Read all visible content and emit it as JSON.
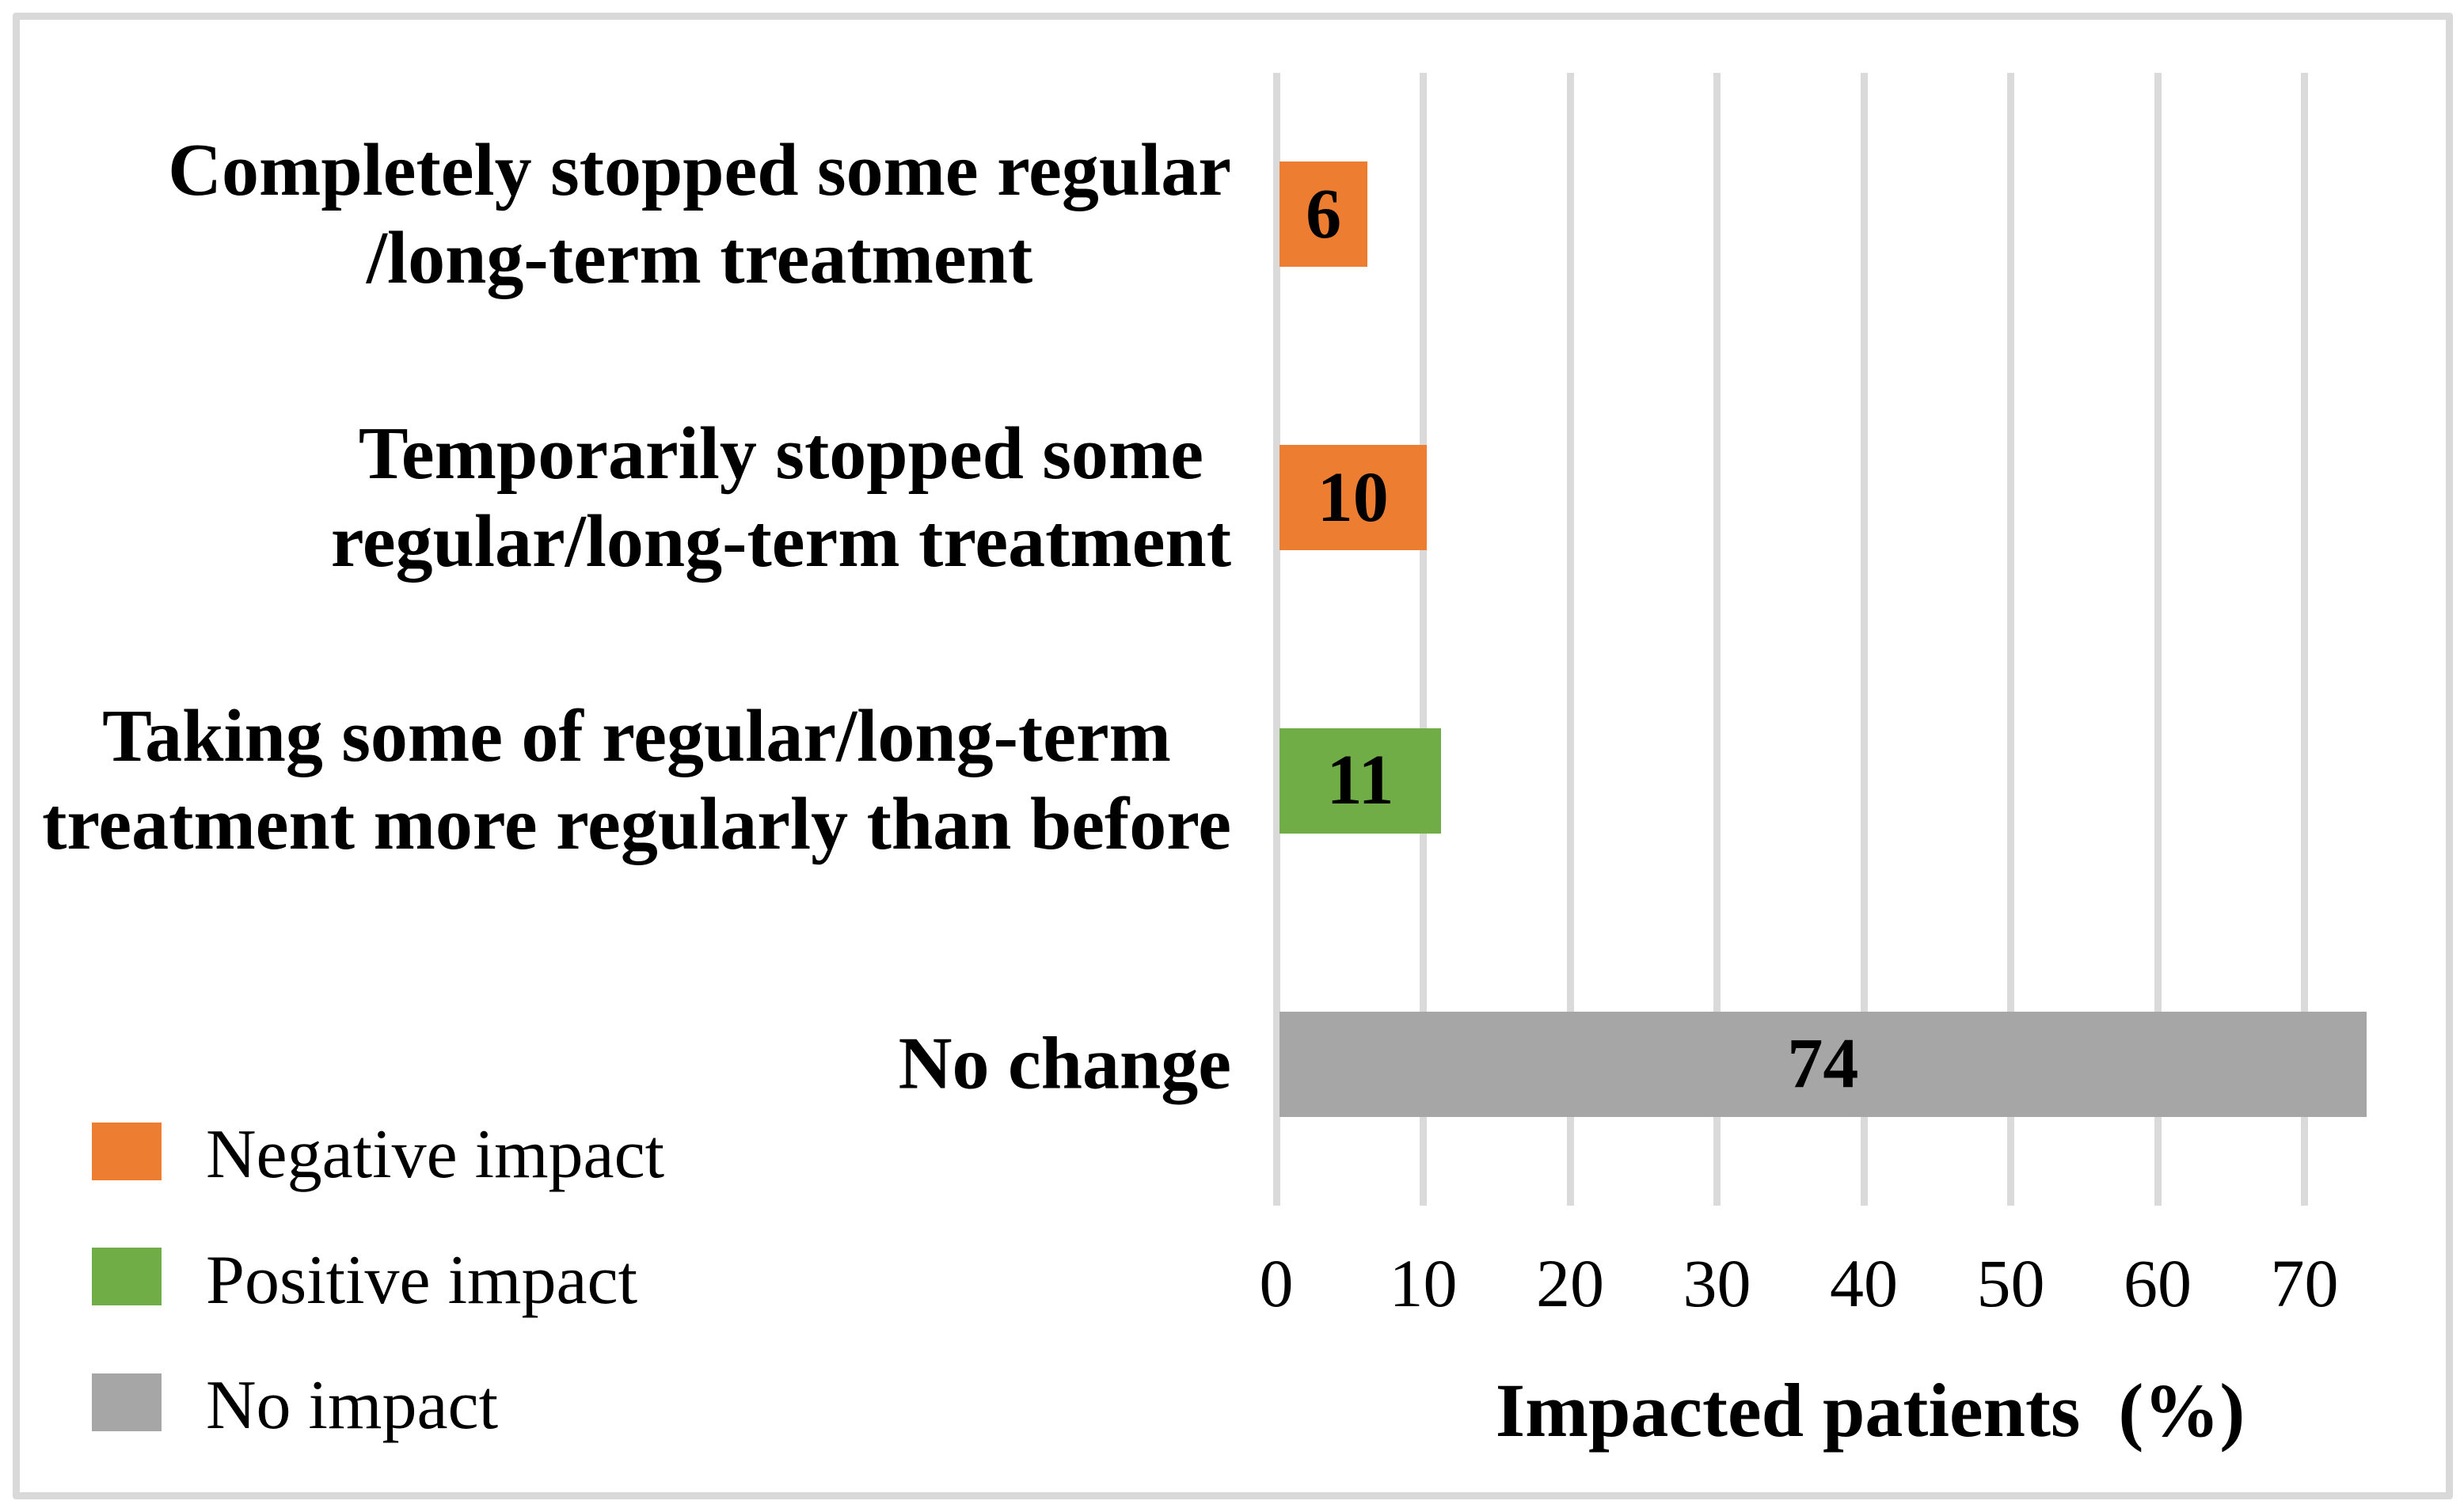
{
  "chart_data": {
    "type": "bar",
    "orientation": "horizontal",
    "title": "",
    "xlabel": "Impacted patients  (%)",
    "categories": [
      "Completely stopped some regular\n/long-term treatment",
      "Temporarily stopped some\nregular/long-term treatment",
      "Taking some of regular/long-term\ntreatment more regularly than before",
      "No change"
    ],
    "values": [
      6,
      10,
      11,
      74
    ],
    "bar_colors": [
      "#ED7D31",
      "#ED7D31",
      "#70AD47",
      "#A6A6A6"
    ],
    "x_ticks": [
      "0",
      "10",
      "20",
      "30",
      "40",
      "50",
      "60",
      "70"
    ],
    "xlim": [
      0,
      76
    ],
    "grid": "vertical-gridlines-on",
    "gridline_color": "#DADADA",
    "legend": {
      "position": "bottom-left",
      "items": [
        {
          "label": "Negative impact",
          "color": "#ED7D31"
        },
        {
          "label": "Positive impact",
          "color": "#70AD47"
        },
        {
          "label": "No impact",
          "color": "#A6A6A6"
        }
      ]
    }
  },
  "colors": {
    "background": "#FFFFFF",
    "border": "#D9D9D9",
    "text": "#000000"
  }
}
